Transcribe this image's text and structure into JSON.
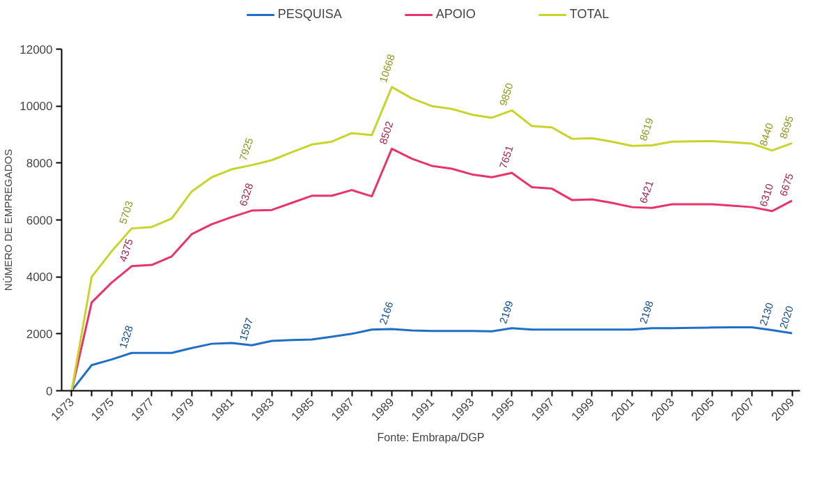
{
  "chart_data": {
    "type": "line",
    "ylabel": "NÚMERO DE EMPREGADOS",
    "x": [
      1973,
      1974,
      1975,
      1976,
      1977,
      1978,
      1979,
      1980,
      1981,
      1982,
      1983,
      1984,
      1985,
      1986,
      1987,
      1988,
      1989,
      1990,
      1991,
      1992,
      1993,
      1994,
      1995,
      1996,
      1997,
      1998,
      1999,
      2000,
      2001,
      2002,
      2003,
      2004,
      2005,
      2006,
      2007,
      2008,
      2009
    ],
    "series": [
      {
        "name": "PESQUISA",
        "color": "#1f6fc6",
        "values": [
          0,
          900,
          1100,
          1328,
          1330,
          1330,
          1500,
          1650,
          1680,
          1597,
          1750,
          1780,
          1800,
          1900,
          2000,
          2150,
          2166,
          2120,
          2100,
          2100,
          2100,
          2090,
          2199,
          2150,
          2150,
          2150,
          2150,
          2150,
          2150,
          2198,
          2200,
          2210,
          2220,
          2230,
          2230,
          2130,
          2020
        ],
        "value_labels": [
          null,
          null,
          null,
          "1328",
          null,
          null,
          null,
          null,
          null,
          "1597",
          null,
          null,
          null,
          null,
          null,
          null,
          "2166",
          null,
          null,
          null,
          null,
          null,
          "2199",
          null,
          null,
          null,
          null,
          null,
          null,
          "2198",
          null,
          null,
          null,
          null,
          null,
          "2130",
          "2020"
        ]
      },
      {
        "name": "APOIO",
        "color": "#e8336b",
        "values": [
          0,
          3100,
          3800,
          4375,
          4420,
          4720,
          5500,
          5850,
          6100,
          6328,
          6350,
          6600,
          6850,
          6850,
          7050,
          6830,
          8502,
          8150,
          7900,
          7800,
          7600,
          7500,
          7651,
          7150,
          7100,
          6700,
          6720,
          6600,
          6450,
          6421,
          6550,
          6550,
          6550,
          6500,
          6450,
          6310,
          6675
        ],
        "value_labels": [
          null,
          null,
          null,
          "4375",
          null,
          null,
          null,
          null,
          null,
          "6328",
          null,
          null,
          null,
          null,
          null,
          null,
          "8502",
          null,
          null,
          null,
          null,
          null,
          "7651",
          null,
          null,
          null,
          null,
          null,
          null,
          "6421",
          null,
          null,
          null,
          null,
          null,
          "6310",
          "6675"
        ]
      },
      {
        "name": "TOTAL",
        "color": "#c8d42a",
        "values": [
          0,
          4000,
          4900,
          5703,
          5750,
          6050,
          7000,
          7500,
          7780,
          7925,
          8100,
          8380,
          8650,
          8750,
          9050,
          8980,
          10668,
          10270,
          10000,
          9900,
          9700,
          9590,
          9850,
          9300,
          9250,
          8850,
          8870,
          8750,
          8600,
          8619,
          8750,
          8760,
          8770,
          8730,
          8680,
          8440,
          8695
        ],
        "value_labels": [
          null,
          null,
          null,
          "5703",
          null,
          null,
          null,
          null,
          null,
          "7925",
          null,
          null,
          null,
          null,
          null,
          null,
          "10668",
          null,
          null,
          null,
          null,
          null,
          "9850",
          null,
          null,
          null,
          null,
          null,
          null,
          "8619",
          null,
          null,
          null,
          null,
          null,
          "8440",
          "8695"
        ]
      }
    ],
    "xlim": [
      1972.5,
      2009.4
    ],
    "xticks": [
      1973,
      {
        "value": 1974,
        "label": null
      },
      1975,
      {
        "value": 1976,
        "label": null
      },
      1977,
      {
        "value": 1978,
        "label": null
      },
      1979,
      {
        "value": 1980,
        "label": null
      },
      1981,
      {
        "value": 1982,
        "label": null
      },
      1983,
      {
        "value": 1984,
        "label": null
      },
      1985,
      {
        "value": 1986,
        "label": null
      },
      1987,
      {
        "value": 1988,
        "label": null
      },
      1989,
      {
        "value": 1990,
        "label": null
      },
      1991,
      {
        "value": 1992,
        "label": null
      },
      1993,
      {
        "value": 1994,
        "label": null
      },
      1995,
      {
        "value": 1996,
        "label": null
      },
      1997,
      {
        "value": 1998,
        "label": null
      },
      1999,
      {
        "value": 2000,
        "label": null
      },
      2001,
      {
        "value": 2002,
        "label": null
      },
      2003,
      {
        "value": 2004,
        "label": null
      },
      2005,
      {
        "value": 2006,
        "label": null
      },
      2007,
      {
        "value": 2008,
        "label": null
      },
      2009
    ],
    "ylim": [
      0,
      12000
    ],
    "yticks": [
      0,
      2000,
      4000,
      6000,
      8000,
      10000,
      12000
    ],
    "grid": false,
    "legend": "top",
    "marker": "none",
    "line_style": "solid",
    "annotations": [
      "Fonte: Embrapa/DGP"
    ]
  }
}
